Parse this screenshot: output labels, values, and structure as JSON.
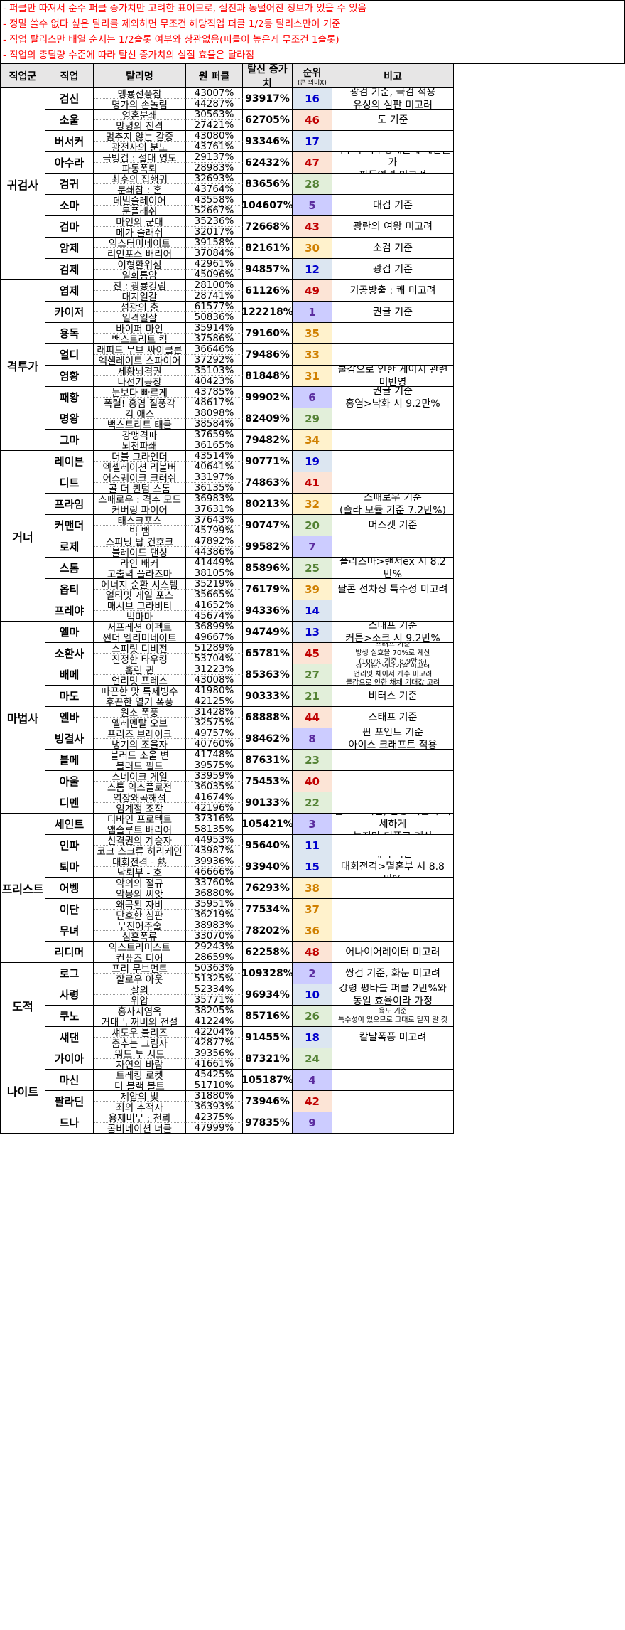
{
  "notes": [
    "- 퍼클만 따져서 순수 퍼클 증가치만 고려한 표이므로, 실전과 동떨어진 정보가 있을 수 있음",
    "- 정말 쓸수 없다 싶은 탈리를 제외하면 무조건 해당직업 퍼클 1/2등 탈리스만이 기준",
    "- 직업 탈리스만 배열 순서는 1/2슬롯 여부와 상관없음(퍼클이 높은게 무조건 1슬롯)",
    "- 직업의 총딜량 수준에 따라 탈신 증가치의 실질 효율은 달라짐"
  ],
  "header": {
    "group": "직업군",
    "job": "직업",
    "skill": "탈리명",
    "orig": "원 퍼클",
    "gain": "탈신 증가치",
    "rank": "순위",
    "rank_sub": "(큰 의미X)",
    "note": "비고"
  },
  "colors": {
    "blue": "#dce6f1",
    "orange": "#fce4d6",
    "purple": "#ccccff",
    "green": "#e2efda",
    "yellow": "#fff2cc",
    "blueText": "#0000cc",
    "redText": "#c00000",
    "purpleText": "#5b2c9f",
    "greenText": "#548235",
    "yellowText": "#d08000"
  },
  "groups": [
    {
      "name": "귀검사",
      "jobs": [
        {
          "job": "검신",
          "skills": [
            "맹룡선풍참",
            "명가의 손놀림"
          ],
          "orig": [
            "43007%",
            "44287%"
          ],
          "gain": "93917%",
          "rank": "16",
          "tone": "blue",
          "note": [
            "광검 기준, 극검 적용",
            "유성의 심판 미고려"
          ]
        },
        {
          "job": "소울",
          "skills": [
            "영혼분쇄",
            "망령의 진격"
          ],
          "orig": [
            "30563%",
            "27421%"
          ],
          "gain": "62705%",
          "rank": "46",
          "tone": "orange",
          "note": [
            "도 기준"
          ]
        },
        {
          "job": "버서커",
          "skills": [
            "멈추지 않는 갈증",
            "광전사의 분노"
          ],
          "orig": [
            "43080%",
            "43761%"
          ],
          "gain": "93346%",
          "rank": "17",
          "tone": "blue",
          "note": []
        },
        {
          "job": "아수라",
          "skills": [
            "극빙검 : 절대 영도",
            "파동폭뢰"
          ],
          "orig": [
            "29137%",
            "28983%"
          ],
          "gain": "62432%",
          "rank": "47",
          "tone": "orange",
          "note": [
            "바주라 특수성때문에 계산불가",
            "파동연격 미고려"
          ]
        },
        {
          "job": "검귀",
          "skills": [
            "최후의 집행귀",
            "분쇄참 : 혼"
          ],
          "orig": [
            "32693%",
            "43764%"
          ],
          "gain": "83656%",
          "rank": "28",
          "tone": "green",
          "note": []
        },
        {
          "job": "소마",
          "skills": [
            "데빌슬레이어",
            "문플래쉬"
          ],
          "orig": [
            "43558%",
            "52667%"
          ],
          "gain": "104607%",
          "rank": "5",
          "tone": "purple",
          "note": [
            "대검 기준"
          ]
        },
        {
          "job": "검마",
          "skills": [
            "마인의 군대",
            "메가 슬래쉬"
          ],
          "orig": [
            "35236%",
            "32017%"
          ],
          "gain": "72668%",
          "rank": "43",
          "tone": "orange",
          "note": [
            "광란의 여왕 미고려"
          ]
        },
        {
          "job": "암제",
          "skills": [
            "익스터미네이트",
            "리인포스 배리어"
          ],
          "orig": [
            "39158%",
            "37084%"
          ],
          "gain": "82161%",
          "rank": "30",
          "tone": "yellow",
          "note": [
            "소검 기준"
          ]
        },
        {
          "job": "검제",
          "skills": [
            "이형환위섬",
            "일화통암"
          ],
          "orig": [
            "42961%",
            "45096%"
          ],
          "gain": "94857%",
          "rank": "12",
          "tone": "blue",
          "note": [
            "광검 기준"
          ]
        }
      ]
    },
    {
      "name": "격투가",
      "jobs": [
        {
          "job": "염제",
          "skills": [
            "진 : 광룡강림",
            "대지일갈"
          ],
          "orig": [
            "28100%",
            "28741%"
          ],
          "gain": "61126%",
          "rank": "49",
          "tone": "orange",
          "note": [
            "기공방출 : 쾌 미고려"
          ]
        },
        {
          "job": "카이저",
          "skills": [
            "섬광의 춤",
            "일격일살"
          ],
          "orig": [
            "61577%",
            "50836%"
          ],
          "gain": "122218%",
          "rank": "1",
          "tone": "purple",
          "note": [
            "권글 기준"
          ]
        },
        {
          "job": "용독",
          "skills": [
            "바이퍼 마인",
            "백스트리트 킥"
          ],
          "orig": [
            "35914%",
            "37586%"
          ],
          "gain": "79160%",
          "rank": "35",
          "tone": "yellow",
          "note": []
        },
        {
          "job": "얼디",
          "skills": [
            "래피드 무브 싸이클론",
            "엑셀레이트 스파이어"
          ],
          "orig": [
            "36646%",
            "37292%"
          ],
          "gain": "79486%",
          "rank": "33",
          "tone": "yellow",
          "note": []
        },
        {
          "job": "염황",
          "skills": [
            "제황뇌격권",
            "나선기공장"
          ],
          "orig": [
            "35103%",
            "40423%"
          ],
          "gain": "81848%",
          "rank": "31",
          "tone": "yellow",
          "note": [
            "쿨감으로 인한 게이지 관련 미반영"
          ]
        },
        {
          "job": "패황",
          "skills": [
            "눈보다 빠르게",
            "폭렬! 홍염 질풍각"
          ],
          "orig": [
            "43785%",
            "48617%"
          ],
          "gain": "99902%",
          "rank": "6",
          "tone": "purple",
          "note": [
            "권글 기준",
            "홍염>낙화 시 9.2만%"
          ]
        },
        {
          "job": "명왕",
          "skills": [
            "킥 애스",
            "백스트리트 태클"
          ],
          "orig": [
            "38098%",
            "38584%"
          ],
          "gain": "82409%",
          "rank": "29",
          "tone": "green",
          "note": []
        },
        {
          "job": "그마",
          "skills": [
            "강맹격파",
            "뇌천파쇄"
          ],
          "orig": [
            "37659%",
            "36165%"
          ],
          "gain": "79482%",
          "rank": "34",
          "tone": "yellow",
          "note": []
        }
      ]
    },
    {
      "name": "거너",
      "jobs": [
        {
          "job": "레이븐",
          "skills": [
            "더블 그라인더",
            "엑셀레이션 리볼버"
          ],
          "orig": [
            "43514%",
            "40641%"
          ],
          "gain": "90771%",
          "rank": "19",
          "tone": "blue",
          "note": []
        },
        {
          "job": "디트",
          "skills": [
            "어스퀘이크 크러쉬",
            "콜 더 퀸텀 스톰"
          ],
          "orig": [
            "33197%",
            "36135%"
          ],
          "gain": "74863%",
          "rank": "41",
          "tone": "orange",
          "note": []
        },
        {
          "job": "프라임",
          "skills": [
            "스패로우 : 격추 모드",
            "커버링 파이어"
          ],
          "orig": [
            "36983%",
            "37631%"
          ],
          "gain": "80213%",
          "rank": "32",
          "tone": "yellow",
          "note": [
            "스패로우 기준",
            "(슬라 모듈 기준 7.2만%)"
          ]
        },
        {
          "job": "커맨더",
          "skills": [
            "태스크포스",
            "빅 뱀"
          ],
          "orig": [
            "37643%",
            "45799%"
          ],
          "gain": "90747%",
          "rank": "20",
          "tone": "green",
          "note": [
            "머스켓 기준"
          ]
        },
        {
          "job": "로제",
          "skills": [
            "스피닝 탑 건호크",
            "블레이드 댄싱"
          ],
          "orig": [
            "47892%",
            "44386%"
          ],
          "gain": "99582%",
          "rank": "7",
          "tone": "purple",
          "note": []
        },
        {
          "job": "스톰",
          "skills": [
            "라인 배커",
            "고출력 플라즈마"
          ],
          "orig": [
            "41449%",
            "38105%"
          ],
          "gain": "85896%",
          "rank": "25",
          "tone": "green",
          "note": [
            "플라즈마>랜서ex 시 8.2만%"
          ]
        },
        {
          "job": "옵티",
          "skills": [
            "에너지 순환 시스템",
            "얼티밋 게일 포스"
          ],
          "orig": [
            "35219%",
            "35665%"
          ],
          "gain": "76179%",
          "rank": "39",
          "tone": "yellow",
          "note": [
            "팔콘 선차징 특수성 미고려"
          ]
        },
        {
          "job": "프레야",
          "skills": [
            "매시브 그라비티",
            "빅마마"
          ],
          "orig": [
            "41652%",
            "45674%"
          ],
          "gain": "94336%",
          "rank": "14",
          "tone": "blue",
          "note": []
        }
      ]
    },
    {
      "name": "마법사",
      "jobs": [
        {
          "job": "엘마",
          "skills": [
            "서프레션 이펙트",
            "썬더 엘리미네이트"
          ],
          "orig": [
            "36899%",
            "49667%"
          ],
          "gain": "94749%",
          "rank": "13",
          "tone": "blue",
          "note": [
            "스태프 기준",
            "커튼>조크 시 9.2만%"
          ]
        },
        {
          "job": "소환사",
          "skills": [
            "스피릿 디비전",
            "진정한 타우킹"
          ],
          "orig": [
            "51289%",
            "53704%"
          ],
          "gain": "65781%",
          "rank": "45",
          "tone": "orange",
          "small": true,
          "note": [
            "스태프 기준",
            "방생 실효율 70%로 계산",
            "(100% 기준 8.9만%)"
          ]
        },
        {
          "job": "배메",
          "skills": [
            "홈런 퀸",
            "언리밋 프레스"
          ],
          "orig": [
            "31223%",
            "43008%"
          ],
          "gain": "85363%",
          "rank": "27",
          "tone": "green",
          "small": true,
          "note": [
            "창 기준, 어나이얼 미고려",
            "언리밋 체이서 개수 미고려",
            "쿨감으로 인한 채채 기대값 고려"
          ]
        },
        {
          "job": "마도",
          "skills": [
            "따끈한 맛 특제빙수",
            "후끈한 열기 폭풍"
          ],
          "orig": [
            "41980%",
            "42125%"
          ],
          "gain": "90333%",
          "rank": "21",
          "tone": "green",
          "note": [
            "비터스 기준"
          ]
        },
        {
          "job": "엘바",
          "skills": [
            "원소 폭풍",
            "엘레멘탈 오브"
          ],
          "orig": [
            "31428%",
            "32575%"
          ],
          "gain": "68888%",
          "rank": "44",
          "tone": "orange",
          "note": [
            "스태프 기준"
          ]
        },
        {
          "job": "빙결사",
          "skills": [
            "프리즈 브레이크",
            "냉기의 조율자"
          ],
          "orig": [
            "49757%",
            "40760%"
          ],
          "gain": "98462%",
          "rank": "8",
          "tone": "purple",
          "note": [
            "핀 포인트 기준",
            "아이스 크래프트 적용"
          ]
        },
        {
          "job": "블메",
          "skills": [
            "블러드 소울 변",
            "블러드 필드"
          ],
          "orig": [
            "41748%",
            "39575%"
          ],
          "gain": "87631%",
          "rank": "23",
          "tone": "green",
          "note": []
        },
        {
          "job": "아울",
          "skills": [
            "스네이크 게일",
            "스톰 익스플로전"
          ],
          "orig": [
            "33959%",
            "36035%"
          ],
          "gain": "75453%",
          "rank": "40",
          "tone": "orange",
          "note": []
        },
        {
          "job": "디멘",
          "skills": [
            "역장왜곡해석",
            "임계점 조작"
          ],
          "orig": [
            "41674%",
            "42196%"
          ],
          "gain": "90133%",
          "rank": "22",
          "tone": "green",
          "note": []
        }
      ]
    },
    {
      "name": "프리스트",
      "jobs": [
        {
          "job": "세인트",
          "skills": [
            "디바인 프로텍트",
            "앱솔루트 배리어"
          ],
          "orig": [
            "37316%",
            "58135%"
          ],
          "gain": "105421%",
          "rank": "3",
          "tone": "purple",
          "note": [
            "글로브 기준, 참망 퍼클이 미세하게",
            "높지만 디폴로 계산"
          ]
        },
        {
          "job": "인파",
          "skills": [
            "신격권의 계승자",
            "코크 스크류 허리케인"
          ],
          "orig": [
            "44953%",
            "43987%"
          ],
          "gain": "95640%",
          "rank": "11",
          "tone": "blue",
          "note": []
        },
        {
          "job": "퇴마",
          "skills": [
            "대회전격 - 熱",
            "낙뢰부 - 호"
          ],
          "orig": [
            "39936%",
            "46666%"
          ],
          "gain": "93940%",
          "rank": "15",
          "tone": "blue",
          "note": [
            "배액 기준",
            "대회전격>멸혼부 시  8.8만%"
          ]
        },
        {
          "job": "어벵",
          "skills": [
            "악의의 절규",
            "악몽의 씨앗"
          ],
          "orig": [
            "33760%",
            "36880%"
          ],
          "gain": "76293%",
          "rank": "38",
          "tone": "yellow",
          "note": []
        },
        {
          "job": "이단",
          "skills": [
            "왜곡된 자비",
            "단호한 심판"
          ],
          "orig": [
            "35951%",
            "36219%"
          ],
          "gain": "77534%",
          "rank": "37",
          "tone": "yellow",
          "note": []
        },
        {
          "job": "무녀",
          "skills": [
            "무진어주술",
            "심혼폭류"
          ],
          "orig": [
            "38983%",
            "33070%"
          ],
          "gain": "78202%",
          "rank": "36",
          "tone": "yellow",
          "note": []
        },
        {
          "job": "리디머",
          "skills": [
            "익스트리미스트",
            "컨퓨즈 티어"
          ],
          "orig": [
            "29243%",
            "28659%"
          ],
          "gain": "62258%",
          "rank": "48",
          "tone": "orange",
          "note": [
            "어나이어레이터 미고려"
          ]
        }
      ]
    },
    {
      "name": "도적",
      "jobs": [
        {
          "job": "로그",
          "skills": [
            "프리 무브먼트",
            "할로우 아웃"
          ],
          "orig": [
            "50363%",
            "51325%"
          ],
          "gain": "109328%",
          "rank": "2",
          "tone": "purple",
          "note": [
            "쌍검 기준, 화눈 미고려"
          ]
        },
        {
          "job": "사령",
          "skills": [
            "살의",
            "위압"
          ],
          "orig": [
            "52334%",
            "35771%"
          ],
          "gain": "96934%",
          "rank": "10",
          "tone": "blue",
          "note": [
            "강령 평타를 퍼클 2만%와",
            "동일 효율이라 가정"
          ]
        },
        {
          "job": "쿠노",
          "skills": [
            "홍사지염옥",
            "거대 두꺼비의 전설"
          ],
          "orig": [
            "38205%",
            "41224%"
          ],
          "gain": "85716%",
          "rank": "26",
          "tone": "green",
          "small": true,
          "note": [
            "육도 기준",
            "특수성이 있으므로 그대로 믿지 말 것"
          ]
        },
        {
          "job": "섀댄",
          "skills": [
            "섀도우 블리즈",
            "춤추는 그림자"
          ],
          "orig": [
            "42204%",
            "42877%"
          ],
          "gain": "91455%",
          "rank": "18",
          "tone": "blue",
          "note": [
            "칼날폭풍 미고려"
          ]
        }
      ]
    },
    {
      "name": "나이트",
      "jobs": [
        {
          "job": "가이아",
          "skills": [
            "워드 투 시드",
            "자연의 바람"
          ],
          "orig": [
            "39356%",
            "41661%"
          ],
          "gain": "87321%",
          "rank": "24",
          "tone": "green",
          "note": []
        },
        {
          "job": "마신",
          "skills": [
            "트레킹 로켓",
            "더 블랙 볼트"
          ],
          "orig": [
            "45425%",
            "51710%"
          ],
          "gain": "105187%",
          "rank": "4",
          "tone": "purple",
          "note": []
        },
        {
          "job": "팔라딘",
          "skills": [
            "제압의 빛",
            "죄의 추적자"
          ],
          "orig": [
            "31880%",
            "36393%"
          ],
          "gain": "73946%",
          "rank": "42",
          "tone": "orange",
          "note": []
        },
        {
          "job": "드나",
          "skills": [
            "용제비무 : 천뢰",
            "콤비네이션 너클"
          ],
          "orig": [
            "42375%",
            "47999%"
          ],
          "gain": "97835%",
          "rank": "9",
          "tone": "purple",
          "note": []
        }
      ]
    }
  ]
}
